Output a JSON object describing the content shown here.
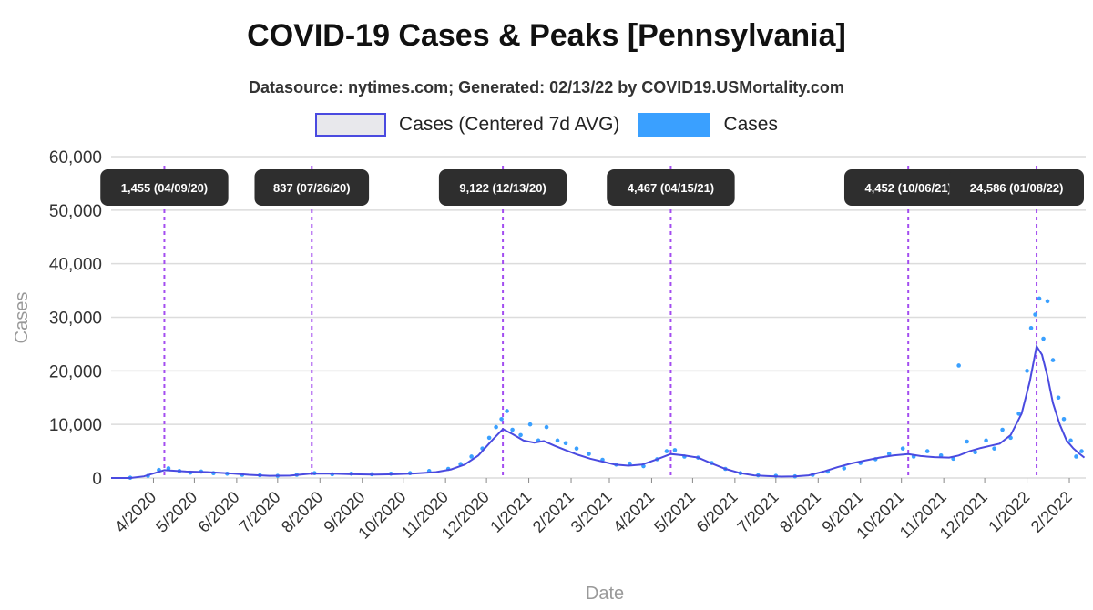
{
  "title": "COVID-19 Cases & Peaks [Pennsylvania]",
  "subtitle": "Datasource: nytimes.com; Generated: 02/13/22 by COVID19.USMortality.com",
  "legend": {
    "avg_label": "Cases (Centered 7d AVG)",
    "cases_label": "Cases"
  },
  "colors": {
    "avg_line": "#4a4ae0",
    "cases_points": "#3aa0ff",
    "peak_line": "#a34df0",
    "peak_label_bg": "#2e2e2e"
  },
  "chart_data": {
    "type": "line",
    "xlabel": "Date",
    "ylabel": "Cases",
    "ylim": [
      0,
      60000
    ],
    "yticks": [
      0,
      10000,
      20000,
      30000,
      40000,
      50000,
      60000
    ],
    "ytick_labels": [
      "0",
      "10,000",
      "20,000",
      "30,000",
      "40,000",
      "50,000",
      "60,000"
    ],
    "xlim": [
      "2020-03-01",
      "2022-02-13"
    ],
    "xticks": [
      "2020-04-01",
      "2020-05-01",
      "2020-06-01",
      "2020-07-01",
      "2020-08-01",
      "2020-09-01",
      "2020-10-01",
      "2020-11-01",
      "2020-12-01",
      "2021-01-01",
      "2021-02-01",
      "2021-03-01",
      "2021-04-01",
      "2021-05-01",
      "2021-06-01",
      "2021-07-01",
      "2021-08-01",
      "2021-09-01",
      "2021-10-01",
      "2021-11-01",
      "2021-12-01",
      "2022-01-01",
      "2022-02-01"
    ],
    "xtick_labels": [
      "4/2020",
      "5/2020",
      "6/2020",
      "7/2020",
      "8/2020",
      "9/2020",
      "10/2020",
      "11/2020",
      "12/2020",
      "1/2021",
      "2/2021",
      "3/2021",
      "4/2021",
      "5/2021",
      "6/2021",
      "7/2021",
      "8/2021",
      "9/2021",
      "10/2021",
      "11/2021",
      "12/2021",
      "1/2022",
      "2/2022"
    ],
    "grid": true,
    "legend_position": "top",
    "series": [
      {
        "name": "Cases (Centered 7d AVG)",
        "style": "line",
        "x": [
          "2020-03-01",
          "2020-03-15",
          "2020-03-25",
          "2020-04-09",
          "2020-04-25",
          "2020-05-10",
          "2020-05-25",
          "2020-06-10",
          "2020-06-25",
          "2020-07-10",
          "2020-07-26",
          "2020-08-10",
          "2020-08-25",
          "2020-09-10",
          "2020-09-25",
          "2020-10-10",
          "2020-10-25",
          "2020-11-05",
          "2020-11-15",
          "2020-11-25",
          "2020-12-05",
          "2020-12-13",
          "2020-12-20",
          "2020-12-28",
          "2021-01-05",
          "2021-01-12",
          "2021-01-20",
          "2021-01-28",
          "2021-02-05",
          "2021-02-15",
          "2021-02-25",
          "2021-03-05",
          "2021-03-15",
          "2021-03-25",
          "2021-04-05",
          "2021-04-15",
          "2021-04-25",
          "2021-05-05",
          "2021-05-15",
          "2021-05-25",
          "2021-06-05",
          "2021-06-15",
          "2021-06-25",
          "2021-07-05",
          "2021-07-15",
          "2021-07-25",
          "2021-08-05",
          "2021-08-15",
          "2021-08-25",
          "2021-09-05",
          "2021-09-15",
          "2021-09-25",
          "2021-10-06",
          "2021-10-15",
          "2021-10-25",
          "2021-11-05",
          "2021-11-12",
          "2021-11-20",
          "2021-11-28",
          "2021-12-05",
          "2021-12-12",
          "2021-12-20",
          "2021-12-28",
          "2022-01-03",
          "2022-01-08",
          "2022-01-12",
          "2022-01-16",
          "2022-01-20",
          "2022-01-25",
          "2022-01-30",
          "2022-02-04",
          "2022-02-08",
          "2022-02-12"
        ],
        "values": [
          0,
          0,
          300,
          1455,
          1200,
          1100,
          900,
          600,
          400,
          450,
          837,
          800,
          700,
          650,
          700,
          850,
          1100,
          1600,
          2500,
          4200,
          7000,
          9122,
          8200,
          7000,
          6600,
          6900,
          6000,
          5200,
          4400,
          3600,
          3000,
          2500,
          2300,
          2500,
          3500,
          4467,
          4200,
          3800,
          2700,
          1700,
          900,
          500,
          350,
          250,
          300,
          500,
          1200,
          2000,
          2700,
          3300,
          3800,
          4200,
          4452,
          4100,
          3900,
          3800,
          4200,
          5000,
          5600,
          6000,
          6400,
          8000,
          12000,
          18000,
          24586,
          23000,
          19000,
          14000,
          10000,
          7000,
          5500,
          4600,
          3800
        ]
      },
      {
        "name": "Cases",
        "style": "points",
        "x": [
          "2020-03-15",
          "2020-03-28",
          "2020-04-05",
          "2020-04-12",
          "2020-04-20",
          "2020-04-28",
          "2020-05-06",
          "2020-05-15",
          "2020-05-25",
          "2020-06-05",
          "2020-06-18",
          "2020-07-01",
          "2020-07-15",
          "2020-07-28",
          "2020-08-10",
          "2020-08-24",
          "2020-09-08",
          "2020-09-22",
          "2020-10-06",
          "2020-10-20",
          "2020-11-03",
          "2020-11-12",
          "2020-11-20",
          "2020-11-28",
          "2020-12-03",
          "2020-12-08",
          "2020-12-12",
          "2020-12-16",
          "2020-12-20",
          "2020-12-26",
          "2021-01-02",
          "2021-01-08",
          "2021-01-14",
          "2021-01-22",
          "2021-01-28",
          "2021-02-05",
          "2021-02-14",
          "2021-02-24",
          "2021-03-06",
          "2021-03-16",
          "2021-03-26",
          "2021-04-05",
          "2021-04-12",
          "2021-04-18",
          "2021-04-25",
          "2021-05-05",
          "2021-05-15",
          "2021-05-25",
          "2021-06-05",
          "2021-06-18",
          "2021-07-01",
          "2021-07-15",
          "2021-07-28",
          "2021-08-08",
          "2021-08-20",
          "2021-09-01",
          "2021-09-12",
          "2021-09-22",
          "2021-10-02",
          "2021-10-10",
          "2021-10-20",
          "2021-10-30",
          "2021-11-08",
          "2021-11-12",
          "2021-11-18",
          "2021-11-24",
          "2021-12-02",
          "2021-12-08",
          "2021-12-14",
          "2021-12-20",
          "2021-12-26",
          "2022-01-01",
          "2022-01-04",
          "2022-01-07",
          "2022-01-10",
          "2022-01-13",
          "2022-01-16",
          "2022-01-20",
          "2022-01-24",
          "2022-01-28",
          "2022-02-02",
          "2022-02-06",
          "2022-02-10"
        ],
        "values": [
          50,
          400,
          1500,
          1800,
          1300,
          1000,
          1200,
          900,
          800,
          600,
          500,
          400,
          600,
          900,
          700,
          800,
          700,
          800,
          900,
          1300,
          1700,
          2600,
          4000,
          5500,
          7500,
          9500,
          11000,
          12500,
          9000,
          8000,
          10000,
          7000,
          9500,
          7000,
          6500,
          5500,
          4500,
          3400,
          2500,
          2700,
          2200,
          3500,
          5000,
          5200,
          4000,
          3800,
          2800,
          1700,
          900,
          500,
          400,
          300,
          600,
          1200,
          1800,
          2800,
          3500,
          4500,
          5500,
          4000,
          5000,
          4200,
          3600,
          21000,
          6800,
          4800,
          7000,
          5500,
          9000,
          7500,
          12000,
          20000,
          28000,
          30500,
          33500,
          26000,
          33000,
          22000,
          15000,
          11000,
          7000,
          4000,
          5000
        ]
      }
    ],
    "peaks": [
      {
        "date": "2020-04-09",
        "label": "1,455 (04/09/20)"
      },
      {
        "date": "2020-07-26",
        "label": "837 (07/26/20)"
      },
      {
        "date": "2020-12-13",
        "label": "9,122 (12/13/20)"
      },
      {
        "date": "2021-04-15",
        "label": "4,467 (04/15/21)"
      },
      {
        "date": "2021-10-06",
        "label": "4,452 (10/06/21)"
      },
      {
        "date": "2022-01-08",
        "label": "24,586 (01/08/22)"
      }
    ]
  }
}
